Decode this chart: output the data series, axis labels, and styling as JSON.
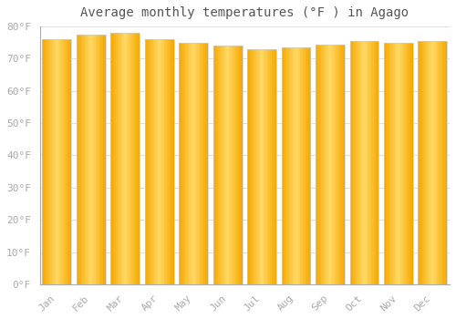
{
  "months": [
    "Jan",
    "Feb",
    "Mar",
    "Apr",
    "May",
    "Jun",
    "Jul",
    "Aug",
    "Sep",
    "Oct",
    "Nov",
    "Dec"
  ],
  "values": [
    76,
    77.5,
    78,
    76,
    75,
    74,
    73,
    73.5,
    74.5,
    75.5,
    75,
    75.5
  ],
  "title": "Average monthly temperatures (°F ) in Agago",
  "ylim": [
    0,
    80
  ],
  "yticks": [
    0,
    10,
    20,
    30,
    40,
    50,
    60,
    70,
    80
  ],
  "ytick_labels": [
    "0°F",
    "10°F",
    "20°F",
    "30°F",
    "40°F",
    "50°F",
    "60°F",
    "70°F",
    "80°F"
  ],
  "bar_color_left": "#F5A800",
  "bar_color_center": "#FFD966",
  "bar_color_right": "#F5A800",
  "bar_edge_color": "#CCCCCC",
  "background_color": "#FFFFFF",
  "grid_color": "#E0E0E0",
  "title_fontsize": 10,
  "tick_fontsize": 8,
  "tick_color": "#AAAAAA",
  "title_color": "#555555",
  "bar_width": 0.85,
  "n_gradient_steps": 40
}
